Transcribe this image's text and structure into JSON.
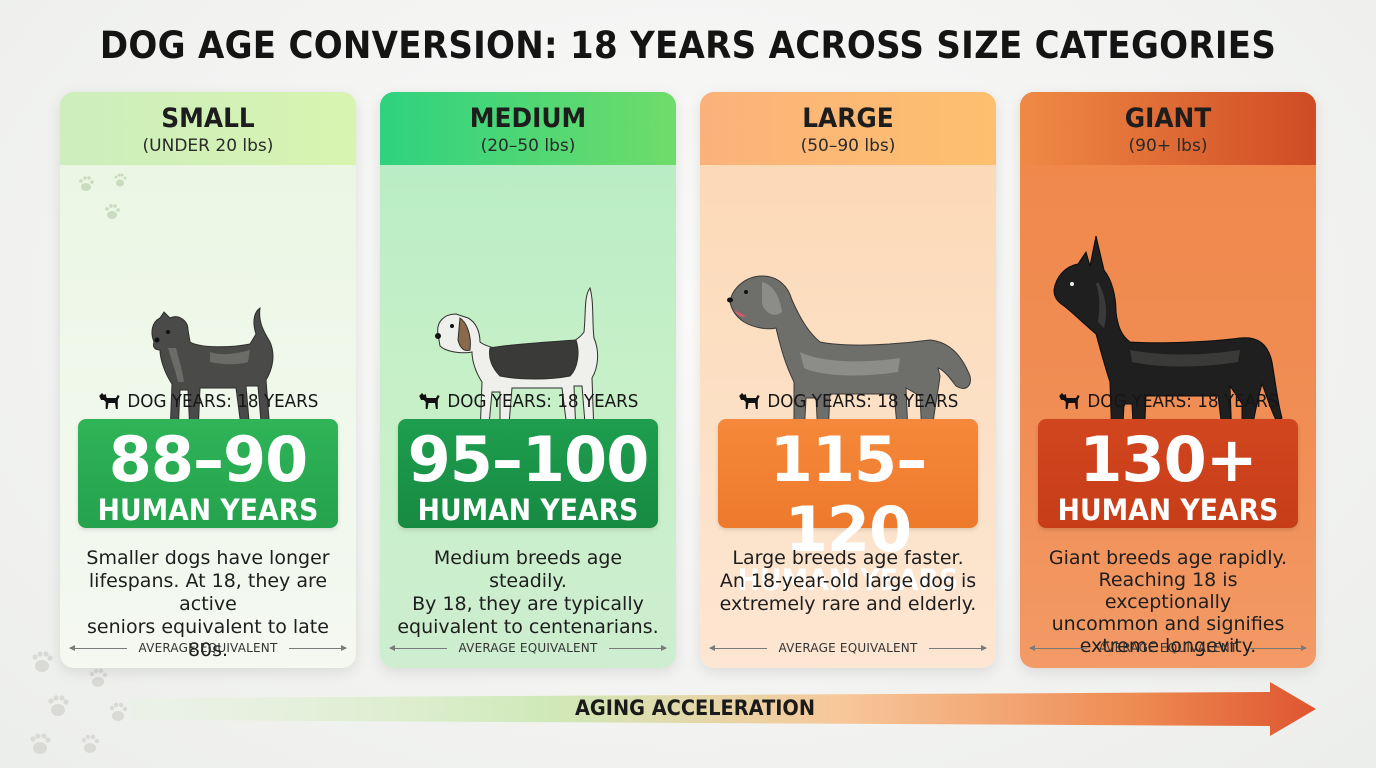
{
  "title": "DOG AGE CONVERSION: 18 YEARS ACROSS SIZE CATEGORIES",
  "cards": [
    {
      "name": "SMALL",
      "weight": "(UNDER 20 lbs)",
      "dog_years": "DOG YEARS: 18 YEARS",
      "human_range": "88–90",
      "human_unit": "HUMAN YEARS",
      "desc_lines": [
        "Smaller dogs have longer",
        "lifespans. At 18, they are active",
        "seniors equivalent to late 80s."
      ],
      "footer": "AVERAGE EQUIVALENT",
      "icon": "terrier-dog-icon"
    },
    {
      "name": "MEDIUM",
      "weight": "(20–50 lbs)",
      "dog_years": "DOG YEARS: 18 YEARS",
      "human_range": "95–100",
      "human_unit": "HUMAN YEARS",
      "desc_lines": [
        "Medium breeds age steadily.",
        "By 18, they are typically",
        "equivalent to centenarians."
      ],
      "footer": "AVERAGE EQUIVALENT",
      "icon": "beagle-dog-icon"
    },
    {
      "name": "LARGE",
      "weight": "(50–90 lbs)",
      "dog_years": "DOG YEARS: 18 YEARS",
      "human_range": "115–120",
      "human_unit": "HUMAN YEARS",
      "desc_lines": [
        "Large breeds age faster.",
        "An 18-year-old large dog is",
        "extremely rare and elderly."
      ],
      "footer": "AVERAGE EQUIVALENT",
      "icon": "retriever-dog-icon"
    },
    {
      "name": "GIANT",
      "weight": "(90+ lbs)",
      "dog_years": "DOG YEARS: 18 YEARS",
      "human_range": "130+",
      "human_unit": "HUMAN YEARS",
      "desc_lines": [
        "Giant breeds age rapidly.",
        "Reaching 18 is exceptionally",
        "uncommon and signifies",
        "extreme longevity."
      ],
      "footer": "AVERAGE EQUIVALENT",
      "icon": "great-dane-dog-icon"
    }
  ],
  "arrow_label": "AGING ACCELERATION",
  "colors": {
    "small": "#2fb458",
    "medium": "#1e9e4e",
    "large": "#f5883a",
    "giant": "#d2461f"
  }
}
